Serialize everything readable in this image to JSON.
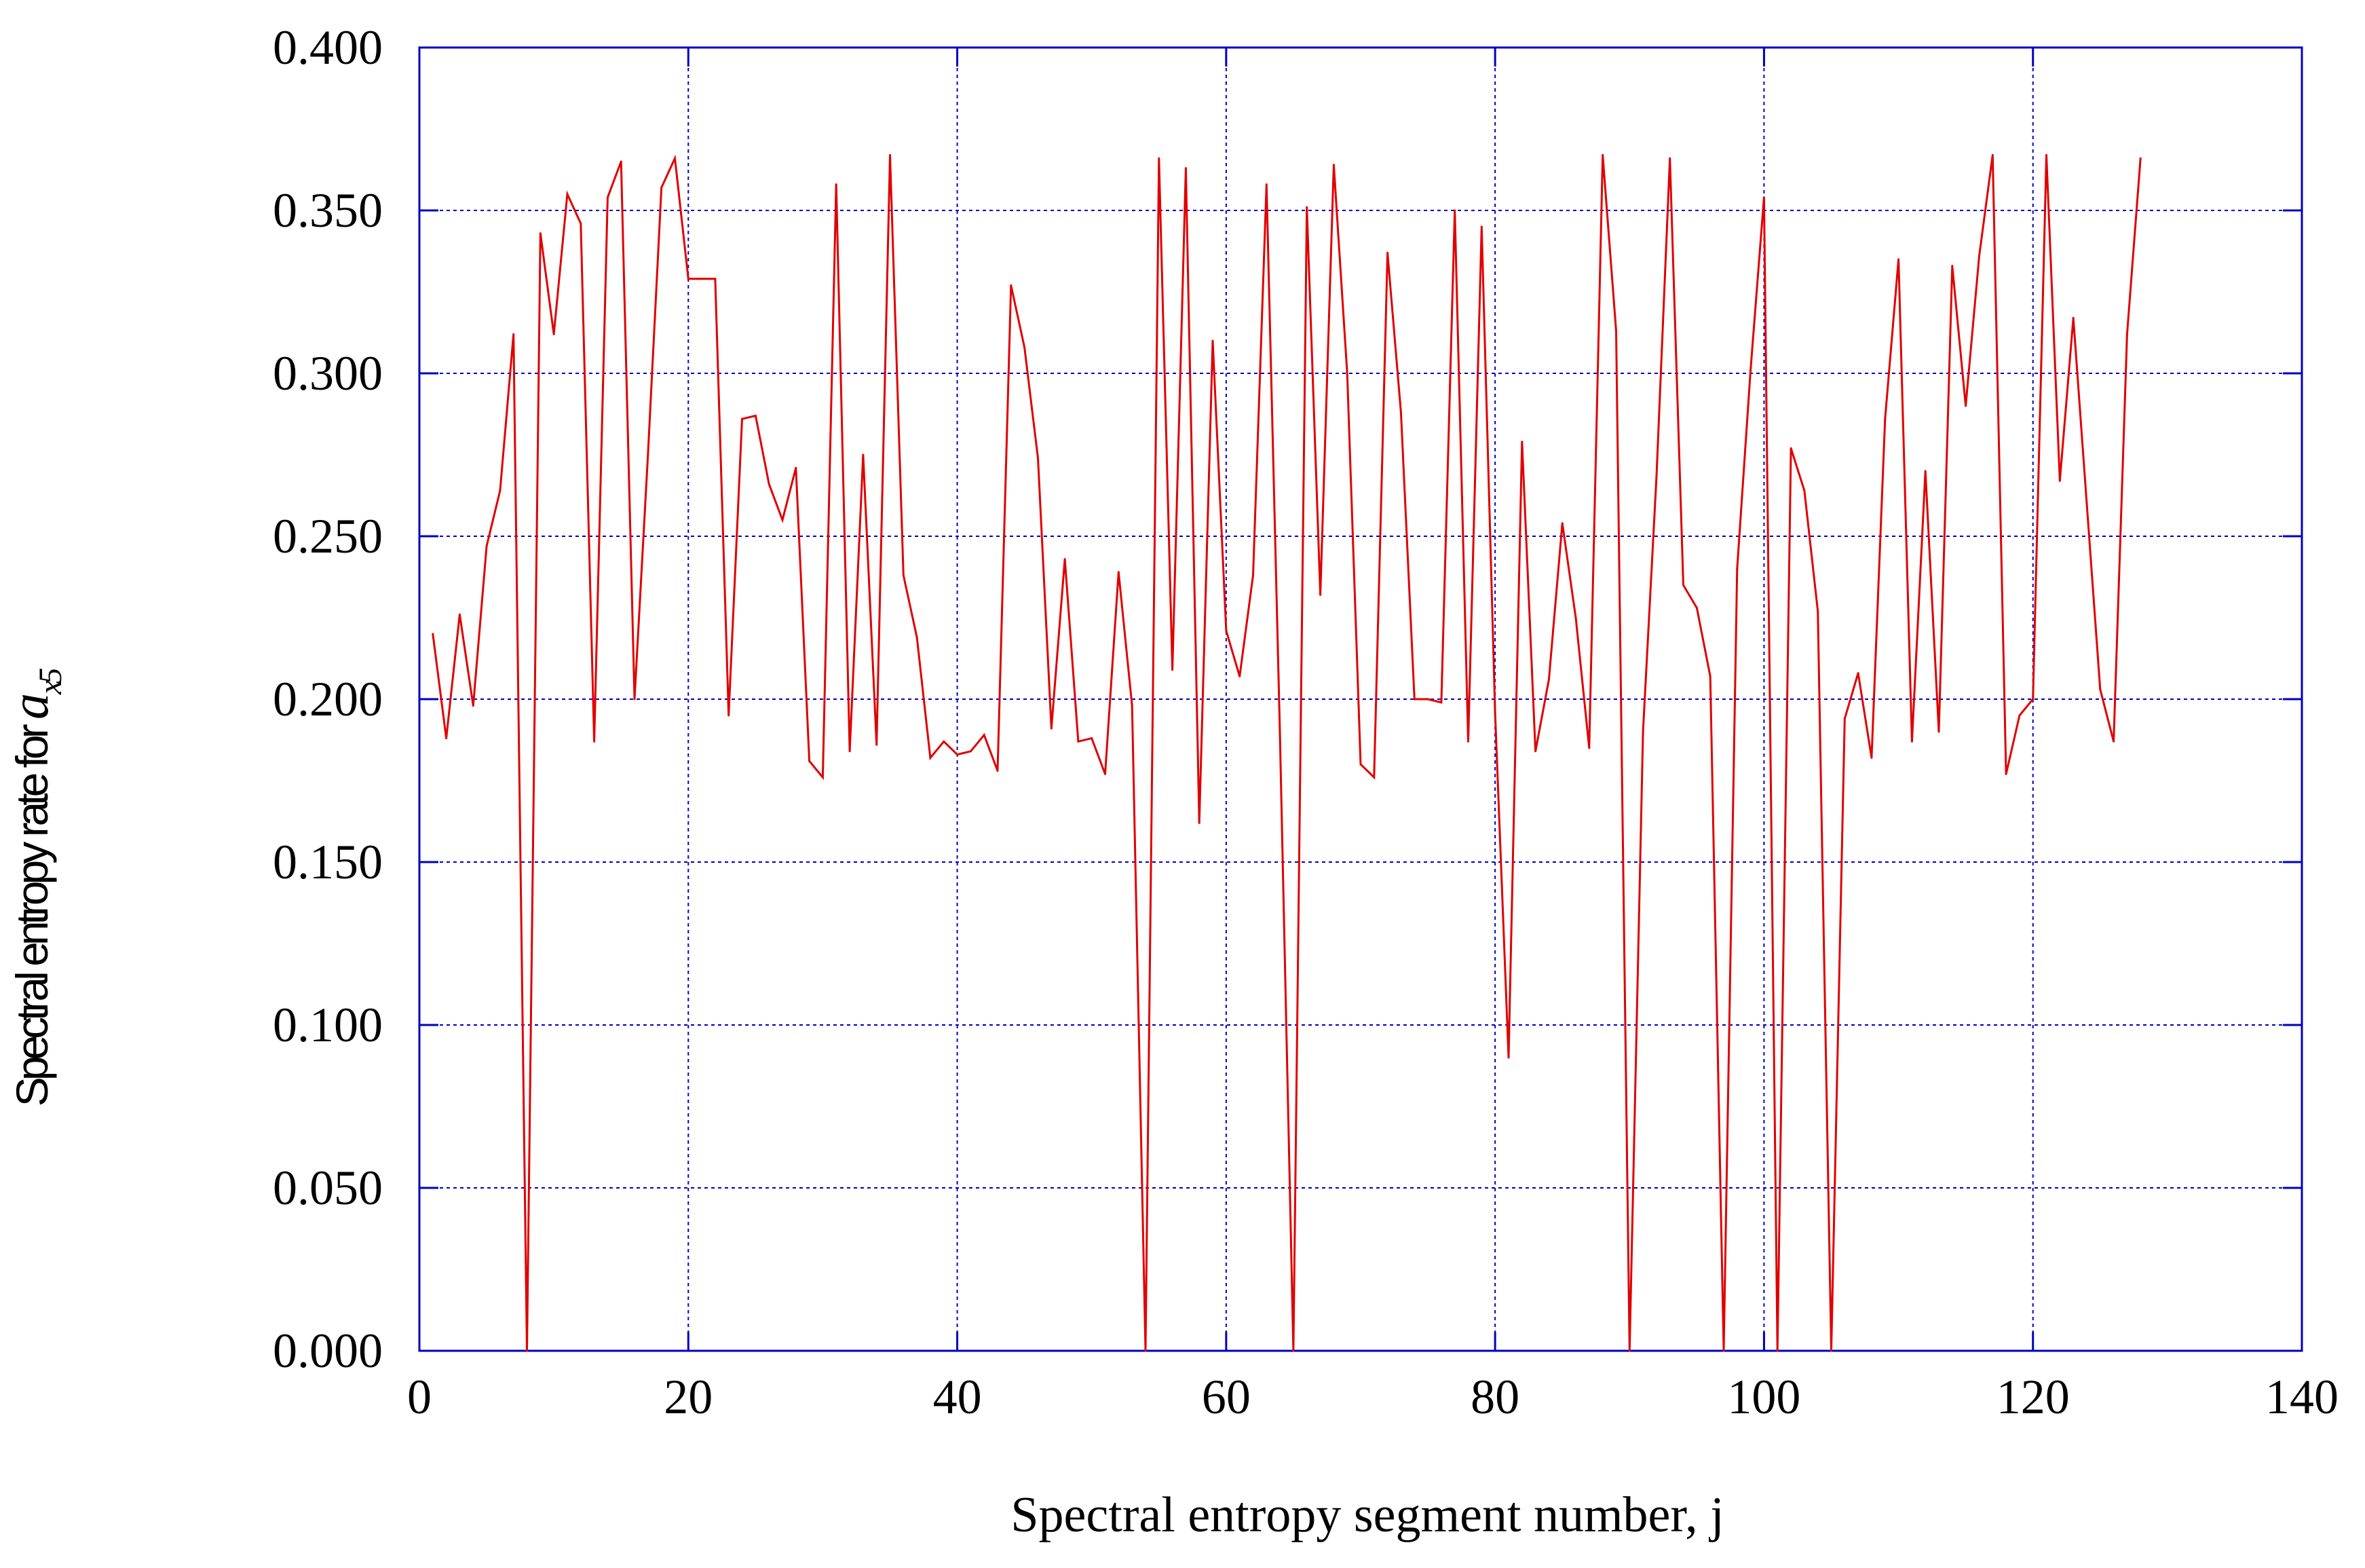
{
  "chart_data": {
    "type": "line",
    "xlabel": "Spectral entropy segment number, j",
    "ylabel": {
      "text": "Spectral entropy rate for ",
      "symbol": "a",
      "subscript": "x5"
    },
    "xlim": [
      0,
      140
    ],
    "ylim": [
      0,
      0.4
    ],
    "x_ticks": [
      0,
      20,
      40,
      60,
      80,
      100,
      120,
      140
    ],
    "x_tick_labels": [
      "0",
      "20",
      "40",
      "60",
      "80",
      "100",
      "120",
      "140"
    ],
    "y_ticks": [
      0,
      0.05,
      0.1,
      0.15,
      0.2,
      0.25,
      0.3,
      0.35,
      0.4
    ],
    "y_tick_labels": [
      "0.000",
      "0.050",
      "0.100",
      "0.150",
      "0.200",
      "0.250",
      "0.300",
      "0.350",
      "0.400"
    ],
    "grid": true,
    "colors": {
      "line": "#e00000",
      "axes": "#0000c0",
      "grid": "#0000c0"
    },
    "series": [
      {
        "x": [
          1,
          2,
          3,
          4,
          5,
          6,
          7,
          8,
          9,
          10,
          11,
          12,
          13,
          14,
          15,
          16,
          17,
          18,
          19,
          20,
          21,
          22,
          23,
          24,
          25,
          26,
          27,
          28,
          29,
          30,
          31,
          32,
          33,
          34,
          35,
          36,
          37,
          38,
          39,
          40,
          41,
          42,
          43,
          44,
          45,
          46,
          47,
          48,
          49,
          50,
          51,
          52,
          53,
          54,
          55,
          56,
          57,
          58,
          59,
          60,
          61,
          62,
          63,
          64,
          65,
          66,
          67,
          68,
          69,
          70,
          71,
          72,
          73,
          74,
          75,
          76,
          77,
          78,
          79,
          80,
          81,
          82,
          83,
          84,
          85,
          86,
          87,
          88,
          89,
          90,
          91,
          92,
          93,
          94,
          95,
          96,
          97,
          98,
          99,
          100,
          101,
          102,
          103,
          104,
          105,
          106,
          107,
          108,
          109,
          110,
          111,
          112,
          113,
          114,
          115,
          116,
          117,
          118,
          119,
          120,
          121,
          122,
          123,
          124,
          125,
          126,
          127,
          128
        ],
        "values": [
          0.22,
          0.188,
          0.226,
          0.198,
          0.247,
          0.264,
          0.312,
          0.0,
          0.343,
          0.312,
          0.355,
          0.346,
          0.187,
          0.354,
          0.365,
          0.2,
          0.275,
          0.357,
          0.366,
          0.329,
          0.329,
          0.329,
          0.195,
          0.286,
          0.287,
          0.266,
          0.255,
          0.271,
          0.181,
          0.176,
          0.358,
          0.184,
          0.275,
          0.186,
          0.367,
          0.238,
          0.219,
          0.182,
          0.187,
          0.183,
          0.184,
          0.189,
          0.178,
          0.327,
          0.308,
          0.274,
          0.191,
          0.243,
          0.187,
          0.188,
          0.177,
          0.239,
          0.198,
          0.0,
          0.366,
          0.209,
          0.363,
          0.162,
          0.31,
          0.221,
          0.207,
          0.238,
          0.358,
          0.189,
          0.0,
          0.351,
          0.232,
          0.364,
          0.3,
          0.18,
          0.176,
          0.337,
          0.288,
          0.2,
          0.2,
          0.199,
          0.35,
          0.187,
          0.345,
          0.196,
          0.09,
          0.279,
          0.184,
          0.206,
          0.254,
          0.225,
          0.185,
          0.367,
          0.313,
          0.0,
          0.19,
          0.268,
          0.366,
          0.235,
          0.228,
          0.207,
          0.0,
          0.24,
          0.301,
          0.354,
          0.0,
          0.277,
          0.264,
          0.227,
          0.0,
          0.194,
          0.208,
          0.182,
          0.286,
          0.335,
          0.187,
          0.27,
          0.19,
          0.333,
          0.29,
          0.336,
          0.367,
          0.177,
          0.195,
          0.2,
          0.367,
          0.267,
          0.317,
          0.26,
          0.203,
          0.187,
          0.312,
          0.366
        ]
      }
    ]
  }
}
